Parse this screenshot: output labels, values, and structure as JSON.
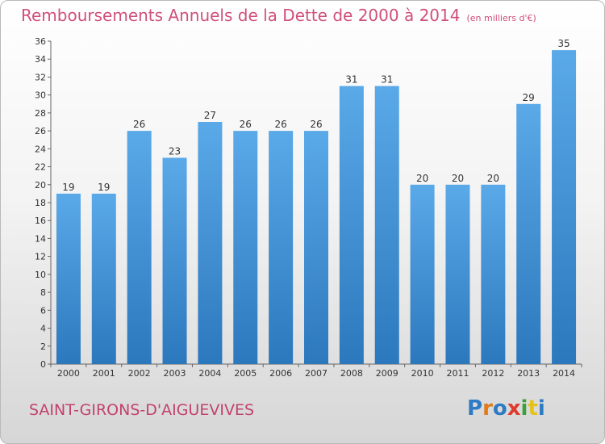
{
  "header": {
    "title": "Remboursements Annuels de la Dette de 2000 à 2014",
    "unit": "(en milliers d'€)"
  },
  "footer": {
    "commune": "SAINT-GIRONS-D'AIGUEVIVES",
    "logo_text": "Proxiti",
    "logo_colors": [
      "#2d7bc4",
      "#e07b1a",
      "#2d7bc4",
      "#e03a2a",
      "#3aa13a",
      "#e5c21a",
      "#2d7bc4"
    ]
  },
  "colors": {
    "bar": "#4a9de0",
    "bar_dark": "#2f7dc4",
    "title": "#d0507a",
    "commune": "#c2416e"
  },
  "chart_data": {
    "type": "bar",
    "categories": [
      "2000",
      "2001",
      "2002",
      "2003",
      "2004",
      "2005",
      "2006",
      "2007",
      "2008",
      "2009",
      "2010",
      "2011",
      "2012",
      "2013",
      "2014"
    ],
    "values": [
      19,
      19,
      26,
      23,
      27,
      26,
      26,
      26,
      31,
      31,
      20,
      20,
      20,
      29,
      35
    ],
    "ylim": [
      0,
      36
    ],
    "yticks": [
      0,
      2,
      4,
      6,
      8,
      10,
      12,
      14,
      16,
      18,
      20,
      22,
      24,
      26,
      28,
      30,
      32,
      34,
      36
    ],
    "grid": false,
    "data_labels": true
  }
}
